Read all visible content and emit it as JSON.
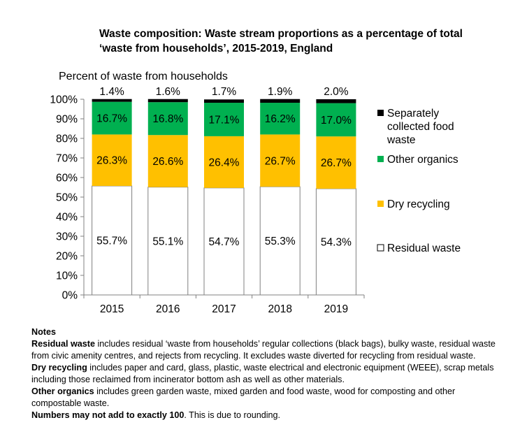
{
  "title_line1": "Waste composition:  Waste stream proportions as a percentage of total",
  "title_line2": "‘waste from households’, 2015-2019,  England",
  "colors": {
    "residual": "#ffffff",
    "dry": "#ffc000",
    "organics": "#00b050",
    "food": "#000000"
  },
  "chart_data": {
    "type": "bar",
    "stacked": true,
    "title": "Waste composition:  Waste stream proportions as a percentage of total ‘waste from households’, 2015-2019,  England",
    "ylabel": "Percent of waste from households",
    "xlabel": "",
    "ylim": [
      0,
      100
    ],
    "yticks": [
      "0%",
      "10%",
      "20%",
      "30%",
      "40%",
      "50%",
      "60%",
      "70%",
      "80%",
      "90%",
      "100%"
    ],
    "categories": [
      "2015",
      "2016",
      "2017",
      "2018",
      "2019"
    ],
    "legend_position": "right",
    "series": [
      {
        "name": "Residual waste",
        "values": [
          55.7,
          55.1,
          54.7,
          55.3,
          54.3
        ],
        "labels": [
          "55.7%",
          "55.1%",
          "54.7%",
          "55.3%",
          "54.3%"
        ]
      },
      {
        "name": "Dry recycling",
        "values": [
          26.3,
          26.6,
          26.4,
          26.7,
          26.7
        ],
        "labels": [
          "26.3%",
          "26.6%",
          "26.4%",
          "26.7%",
          "26.7%"
        ]
      },
      {
        "name": "Other organics",
        "values": [
          16.7,
          16.8,
          17.1,
          16.2,
          17.0
        ],
        "labels": [
          "16.7%",
          "16.8%",
          "17.1%",
          "16.2%",
          "17.0%"
        ]
      },
      {
        "name": "Separately collected food waste",
        "values": [
          1.4,
          1.6,
          1.7,
          1.9,
          2.0
        ],
        "labels": [
          "1.4%",
          "1.6%",
          "1.7%",
          "1.9%",
          "2.0%"
        ]
      }
    ],
    "legend": [
      {
        "series": 3,
        "lines": [
          "Separately",
          "collected food",
          "waste"
        ]
      },
      {
        "series": 2,
        "lines": [
          "Other organics"
        ]
      },
      {
        "series": 1,
        "lines": [
          "Dry recycling"
        ]
      },
      {
        "series": 0,
        "lines": [
          "Residual waste"
        ]
      }
    ]
  },
  "notes": {
    "heading": "Notes",
    "residual_term": "Residual waste",
    "residual_text": " includes residual ‘waste from households’ regular collections (black bags), bulky waste, residual waste from civic amenity centres, and rejects from recycling. It excludes waste diverted for recycling from residual waste.",
    "dry_term": "Dry recycling",
    "dry_text": " includes paper and card, glass, plastic, waste electrical and electronic equipment (WEEE), scrap metals including those reclaimed from incinerator bottom ash as well as other materials.",
    "organics_term": "Other organics",
    "organics_text": " includes green garden waste, mixed garden and food waste, wood for composting and other compostable waste.",
    "rounding_term": "Numbers may not add to exactly 100",
    "rounding_text": ". This is due to rounding."
  }
}
